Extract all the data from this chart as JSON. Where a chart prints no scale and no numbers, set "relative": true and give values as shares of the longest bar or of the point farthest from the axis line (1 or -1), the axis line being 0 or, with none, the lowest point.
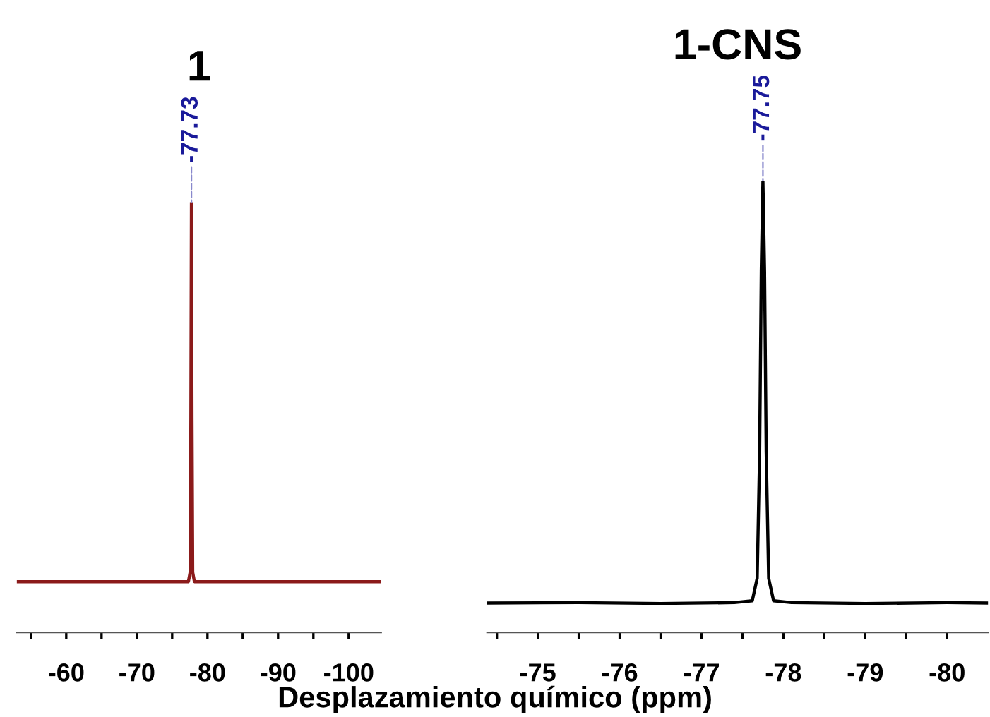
{
  "chart_data": [
    {
      "type": "line",
      "title": "1",
      "xlabel": "Desplazamiento químico (ppm)",
      "relative": true,
      "x": [
        -53,
        -77.3,
        -77.55,
        -77.65,
        -77.73,
        -77.81,
        -77.91,
        -78.15,
        -104.6
      ],
      "series": [
        {
          "color": "#8b1a1a",
          "values": [
            0.118,
            0.118,
            0.14,
            0.5,
            1,
            0.5,
            0.14,
            0.118,
            0.118
          ]
        }
      ],
      "xlim": [
        -53,
        -104.6
      ],
      "xticks": [
        {
          "value": -55,
          "label": null
        },
        -60,
        {
          "value": -65,
          "label": null
        },
        -70,
        {
          "value": -75,
          "label": null
        },
        -80,
        {
          "value": -85,
          "label": null
        },
        -90,
        {
          "value": -95,
          "label": null
        },
        -100
      ],
      "annotations": [
        {
          "text": "-77.73",
          "x": -77.73,
          "y": 1
        }
      ],
      "grid": false,
      "legend": false,
      "tick_labels": "x"
    },
    {
      "type": "line",
      "title": "1-CNS",
      "relative": true,
      "x": [
        -74.38,
        -75.5,
        -76.5,
        -77.4,
        -77.62,
        -77.68,
        -77.71,
        -77.73,
        -77.75,
        -77.77,
        -77.79,
        -77.82,
        -77.88,
        -78.1,
        -79.0,
        -80.0,
        -80.5
      ],
      "series": [
        {
          "color": "#000000",
          "values": [
            0.065,
            0.066,
            0.064,
            0.066,
            0.07,
            0.12,
            0.4,
            0.8,
            1,
            0.8,
            0.4,
            0.12,
            0.07,
            0.066,
            0.064,
            0.066,
            0.065
          ]
        }
      ],
      "xlim": [
        -74.38,
        -80.5
      ],
      "xticks": [
        {
          "value": -74.5,
          "label": null
        },
        -75,
        {
          "value": -75.5,
          "label": null
        },
        -76,
        {
          "value": -76.5,
          "label": null
        },
        -77,
        {
          "value": -77.5,
          "label": null
        },
        -78,
        {
          "value": -78.5,
          "label": null
        },
        -79,
        {
          "value": -79.5,
          "label": null
        },
        -80
      ],
      "annotations": [
        {
          "text": "-77.75",
          "x": -77.75,
          "y": 1
        }
      ],
      "grid": false,
      "legend": false,
      "tick_labels": "x"
    }
  ]
}
